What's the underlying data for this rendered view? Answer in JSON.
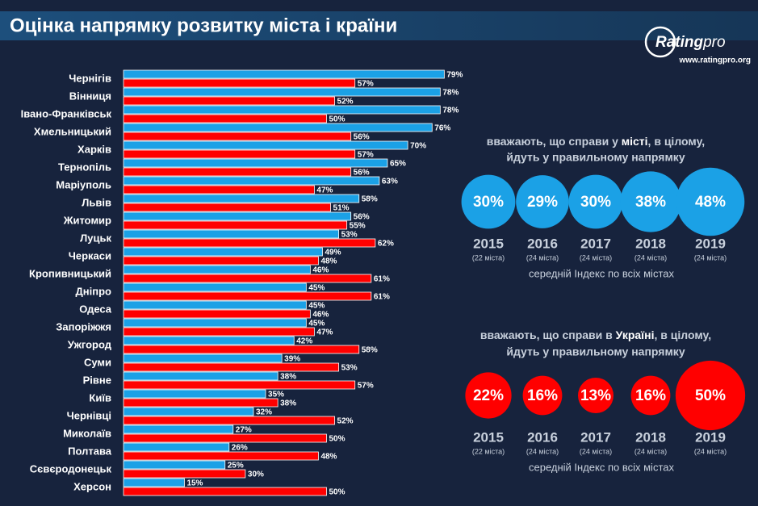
{
  "header": {
    "title": "Оцінка напрямку розвитку міста і країни",
    "logo": "Rating",
    "logo_suffix": "pro",
    "url": "www.ratingpro.org"
  },
  "chart_data": [
    {
      "type": "hbar",
      "categories": [
        "Чернігів",
        "Вінниця",
        "Івано-Франківськ",
        "Хмельницький",
        "Харків",
        "Тернопіль",
        "Маріуполь",
        "Львів",
        "Житомир",
        "Луцьк",
        "Черкаси",
        "Кропивницький",
        "Дніпро",
        "Одеса",
        "Запоріжжя",
        "Ужгород",
        "Суми",
        "Рівне",
        "Київ",
        "Чернівці",
        "Миколаїв",
        "Полтава",
        "Сєвєродонецьк",
        "Херсон"
      ],
      "series": [
        {
          "color": "#1ba1e6",
          "values": [
            79,
            78,
            78,
            76,
            70,
            65,
            63,
            58,
            56,
            53,
            49,
            46,
            45,
            45,
            45,
            42,
            39,
            38,
            35,
            32,
            27,
            26,
            25,
            15
          ],
          "value_labels": [
            "79%",
            "78%",
            "78%",
            "76%",
            "70%",
            "65%",
            "63%",
            "58%",
            "56%",
            "53%",
            "49%",
            "46%",
            "45%",
            "45%",
            "45%",
            "42%",
            "39%",
            "38%",
            "35%",
            "32%",
            "27%",
            "26%",
            "25%",
            "15%"
          ]
        },
        {
          "color": "#ff0000",
          "values": [
            57,
            52,
            50,
            56,
            57,
            56,
            47,
            51,
            55,
            62,
            48,
            61,
            61,
            46,
            47,
            58,
            53,
            57,
            38,
            52,
            50,
            48,
            30,
            50
          ],
          "value_labels": [
            "57%",
            "52%",
            "50%",
            "56%",
            "57%",
            "56%",
            "47%",
            "51%",
            "55%",
            "62%",
            "48%",
            "61%",
            "61%",
            "46%",
            "47%",
            "58%",
            "53%",
            "57%",
            "38%",
            "52%",
            "50%",
            "48%",
            "30%",
            "50%"
          ]
        }
      ]
    },
    {
      "type": "bubble",
      "title": {
        "before": "вважають, що справи у ",
        "highlight": "місті",
        "after": ", в цілому,",
        "line2": "йдуть у правильному напрямку"
      },
      "color": "#1ba1e6",
      "categories": [
        "2015",
        "2016",
        "2017",
        "2018",
        "2019"
      ],
      "notes": [
        "(22 міста)",
        "(24 міста)",
        "(24 міста)",
        "(24 міста)",
        "(24 міста)"
      ],
      "values": [
        30,
        29,
        30,
        38,
        48
      ],
      "value_labels": [
        "30%",
        "29%",
        "30%",
        "38%",
        "48%"
      ],
      "footer": "середній Індекс по всіх містах"
    },
    {
      "type": "bubble",
      "title": {
        "before": "вважають, що справи в ",
        "highlight": "Україні",
        "after": ", в цілому,",
        "line2": "йдуть у правильному напрямку"
      },
      "color": "#ff0000",
      "categories": [
        "2015",
        "2016",
        "2017",
        "2018",
        "2019"
      ],
      "notes": [
        "(22 міста)",
        "(24 міста)",
        "(24 міста)",
        "(24 міста)",
        "(24 міста)"
      ],
      "values": [
        22,
        16,
        13,
        16,
        50
      ],
      "value_labels": [
        "22%",
        "16%",
        "13%",
        "16%",
        "50%"
      ],
      "footer": "середній Індекс по всіх містах"
    }
  ]
}
